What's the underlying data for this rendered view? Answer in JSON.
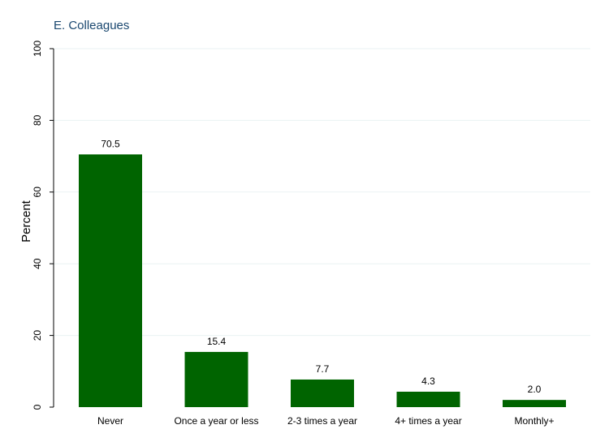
{
  "chart_data": {
    "type": "bar",
    "title": "E. Colleagues",
    "xlabel": "",
    "ylabel": "Percent",
    "categories": [
      "Never",
      "Once a year or less",
      "2-3 times a year",
      "4+ times a year",
      "Monthly+"
    ],
    "values": [
      70.5,
      15.4,
      7.7,
      4.3,
      2.0
    ],
    "value_labels": [
      "70.5",
      "15.4",
      "7.7",
      "4.3",
      "2.0"
    ],
    "ylim": [
      0,
      100
    ],
    "yticks": [
      0,
      20,
      40,
      60,
      80,
      100
    ],
    "ytick_labels": [
      "0",
      "20",
      "40",
      "60",
      "80",
      "100"
    ],
    "grid": true,
    "colors": {
      "bar": "#006400",
      "grid": "#eaf2f3",
      "title": "#1a476f"
    }
  }
}
